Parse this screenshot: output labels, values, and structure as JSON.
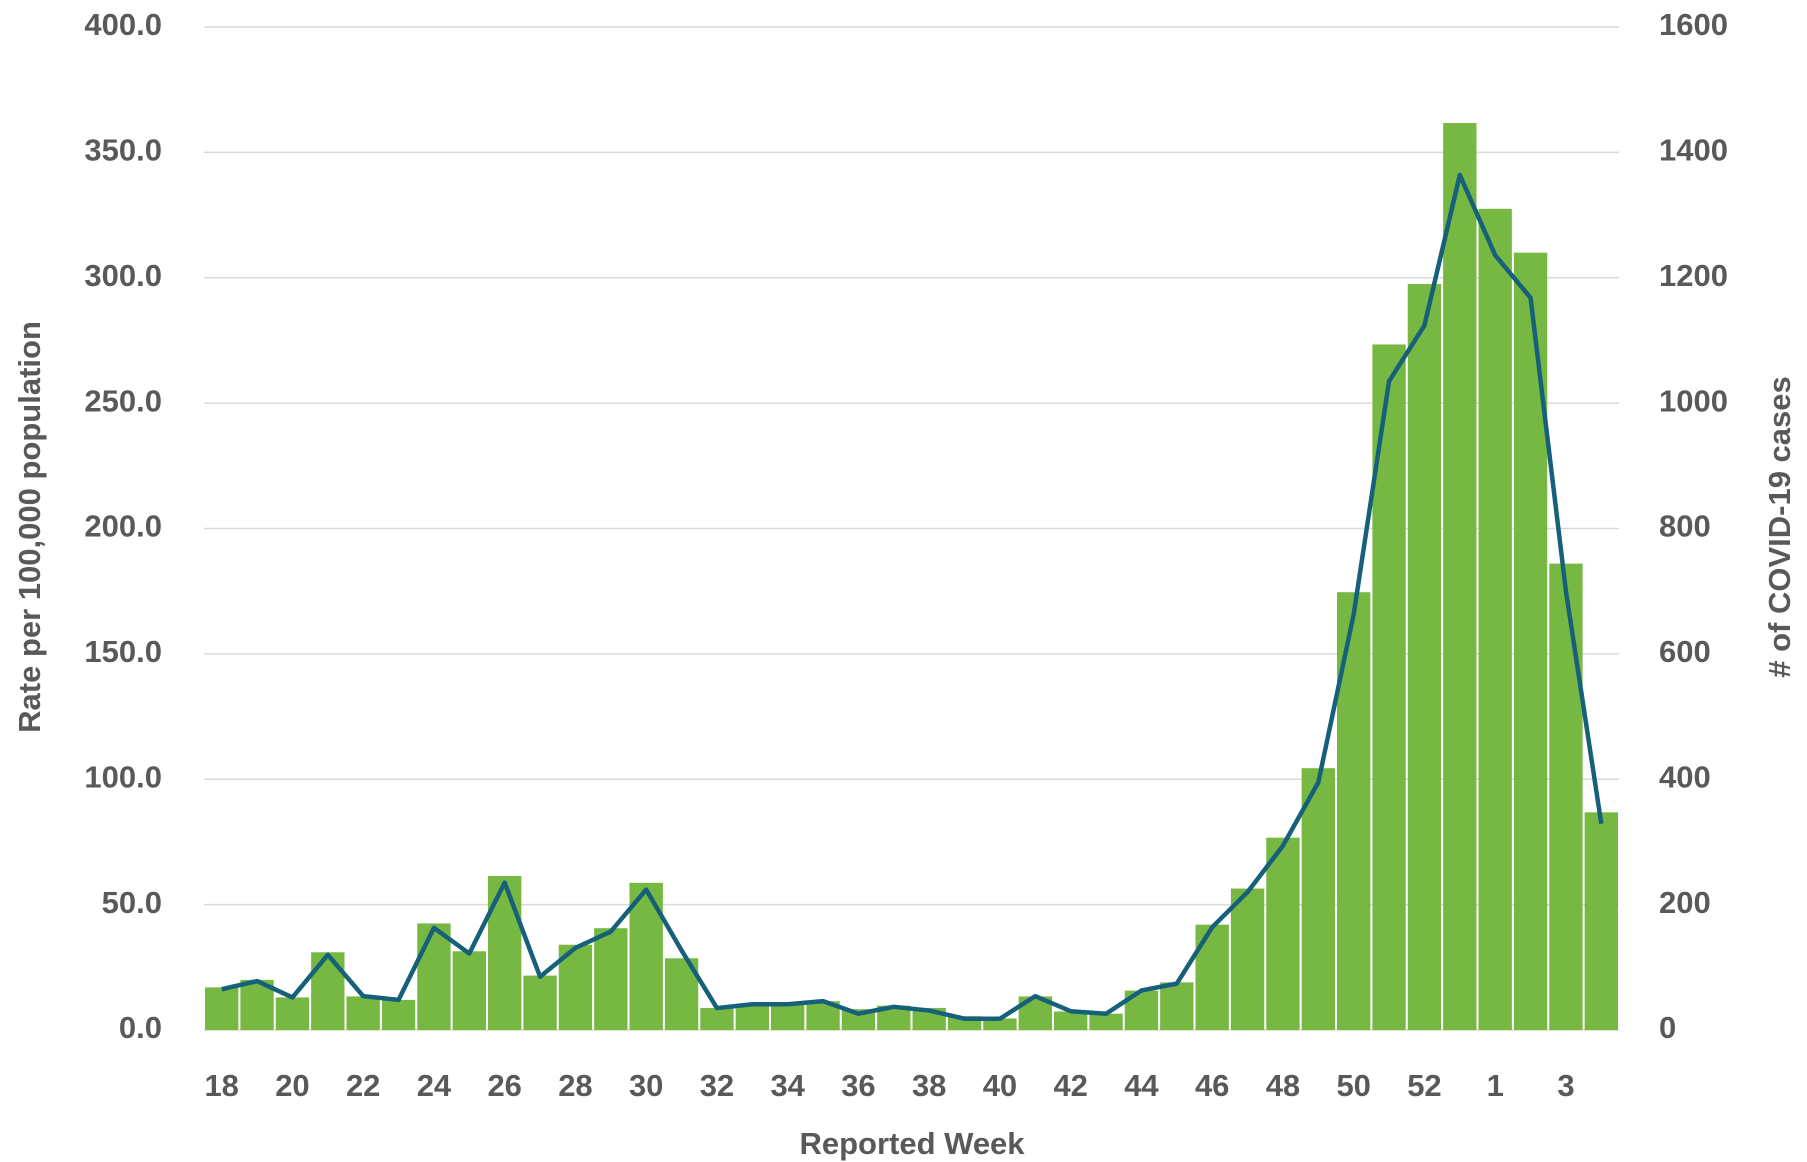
{
  "chart_data": {
    "type": "bar_line",
    "x_label": "Reported Week",
    "y_label": "Rate per 100,000 population",
    "y2_label": "# of COVID-19 cases",
    "categories": [
      "18",
      null,
      "20",
      null,
      "22",
      null,
      "24",
      null,
      "26",
      null,
      "28",
      null,
      "30",
      null,
      "32",
      null,
      "34",
      null,
      "36",
      null,
      "38",
      null,
      "40",
      null,
      "42",
      null,
      "44",
      null,
      "46",
      null,
      "48",
      null,
      "50",
      null,
      "52",
      null,
      "1",
      null,
      "3",
      null
    ],
    "series": [
      {
        "name": "Rate per 100,000 population",
        "type": "bar",
        "color": "#77b843",
        "axis": "y",
        "values": [
          17,
          20,
          13,
          31,
          13.4,
          12,
          42.5,
          31.4,
          61.4,
          21.7,
          34,
          40.6,
          58.7,
          28.6,
          8.8,
          9.7,
          10,
          11.5,
          8.3,
          9.7,
          8.8,
          5.5,
          4.6,
          13.4,
          7.4,
          6.5,
          15.7,
          19,
          42,
          56.4,
          76.7,
          104.4,
          174.6,
          273.4,
          297.5,
          361.7,
          327.5,
          310,
          186,
          86.8
        ]
      },
      {
        "name": "# of COVID-19 cases",
        "type": "line",
        "color": "#17607a",
        "axis": "y2",
        "values": [
          65,
          78,
          52,
          120,
          54,
          48,
          163,
          122,
          235,
          85,
          131,
          157,
          224,
          127,
          35,
          41,
          41,
          46,
          26,
          37,
          31,
          18,
          18,
          54,
          30,
          26,
          63,
          74,
          164,
          220,
          294,
          395,
          663,
          1035,
          1124,
          1364,
          1236,
          1168,
          700,
          329
        ]
      }
    ],
    "ylim": [
      0,
      400
    ],
    "yticks": [
      {
        "value": 0,
        "label": "0.0"
      },
      {
        "value": 50,
        "label": "50.0"
      },
      {
        "value": 100,
        "label": "100.0"
      },
      {
        "value": 150,
        "label": "150.0"
      },
      {
        "value": 200,
        "label": "200.0"
      },
      {
        "value": 250,
        "label": "250.0"
      },
      {
        "value": 300,
        "label": "300.0"
      },
      {
        "value": 350,
        "label": "350.0"
      },
      {
        "value": 400,
        "label": "400.0"
      }
    ],
    "y2lim": [
      0,
      1600
    ],
    "y2ticks": [
      0,
      200,
      400,
      600,
      800,
      1000,
      1200,
      1400,
      1600
    ],
    "grid": true
  }
}
